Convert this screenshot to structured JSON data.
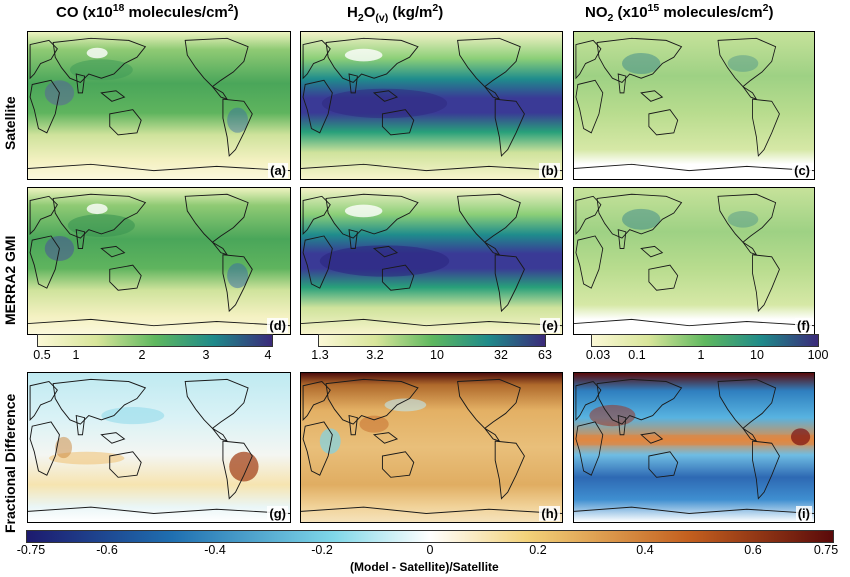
{
  "columns": {
    "co": {
      "prefix": "CO (x10",
      "exp": "18",
      "suffix": " molecules/cm",
      "sup2": "2",
      "close": ")"
    },
    "h2o": {
      "prefix": "H",
      "sub": "2",
      "mid": "O",
      "sub2": "(v)",
      "suffix": " (kg/m",
      "sup2": "2",
      "close": ")"
    },
    "no2": {
      "prefix": "NO",
      "sub": "2",
      "suffix": " (x10",
      "exp": "15",
      "mid": " molecules/cm",
      "sup2": "2",
      "close": ")"
    }
  },
  "rows": {
    "satellite": "Satellite",
    "merra": "MERRA2 GMI",
    "fracdiff": "Fractional Difference"
  },
  "panel_labels": [
    "(a)",
    "(b)",
    "(c)",
    "(d)",
    "(e)",
    "(f)",
    "(g)",
    "(h)",
    "(i)"
  ],
  "colorbars": {
    "co": {
      "ticks": [
        "0.5",
        "1",
        "2",
        "3",
        "4"
      ]
    },
    "h2o": {
      "ticks": [
        "1.3",
        "3.2",
        "10",
        "32",
        "63"
      ]
    },
    "no2": {
      "ticks": [
        "0.03",
        "0.1",
        "1",
        "10",
        "100"
      ]
    },
    "diff": {
      "ticks": [
        "-0.75",
        "-0.6",
        "-0.4",
        "-0.2",
        "0",
        "0.2",
        "0.4",
        "0.6",
        "0.75"
      ],
      "label": "(Model - Satellite)/Satellite"
    }
  },
  "colors": {
    "seq_low": "#f7f3c6",
    "seq_mid": "#4caf5e",
    "seq_high": "#3b2a7a",
    "div_low": "#1d1a6e",
    "div_zero": "#ffffff",
    "div_high": "#5a0a0a"
  }
}
